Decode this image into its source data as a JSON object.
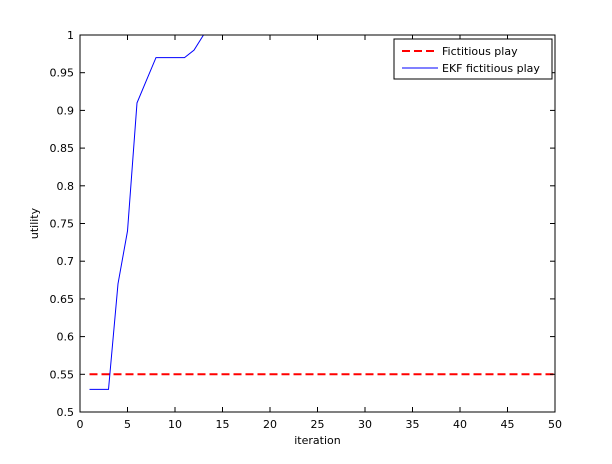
{
  "chart_data": {
    "type": "line",
    "xlabel": "iteration",
    "ylabel": "utility",
    "xlim": [
      0,
      50
    ],
    "ylim": [
      0.5,
      1.0
    ],
    "xticks": [
      0,
      5,
      10,
      15,
      20,
      25,
      30,
      35,
      40,
      45,
      50
    ],
    "yticks": [
      0.5,
      0.55,
      0.6,
      0.65,
      0.7,
      0.75,
      0.8,
      0.85,
      0.9,
      0.95,
      1.0
    ],
    "xtick_labels": [
      "0",
      "5",
      "10",
      "15",
      "20",
      "25",
      "30",
      "35",
      "40",
      "45",
      "50"
    ],
    "ytick_labels": [
      "0.5",
      "0.55",
      "0.6",
      "0.65",
      "0.7",
      "0.75",
      "0.8",
      "0.85",
      "0.9",
      "0.95",
      "1"
    ],
    "grid": false,
    "legend_position": "top-right",
    "series": [
      {
        "name": "Fictitious play",
        "color": "#ff0000",
        "style": "dashed",
        "x": [
          1,
          50
        ],
        "y": [
          0.55,
          0.55
        ]
      },
      {
        "name": "EKF fictitious play",
        "color": "#0000ff",
        "style": "solid",
        "x": [
          1,
          2,
          3,
          4,
          5,
          6,
          7,
          8,
          9,
          10,
          11,
          12,
          13,
          14,
          50
        ],
        "y": [
          0.53,
          0.53,
          0.53,
          0.67,
          0.74,
          0.91,
          0.94,
          0.97,
          0.97,
          0.97,
          0.97,
          0.98,
          1.0,
          1.0,
          1.0
        ]
      }
    ]
  }
}
